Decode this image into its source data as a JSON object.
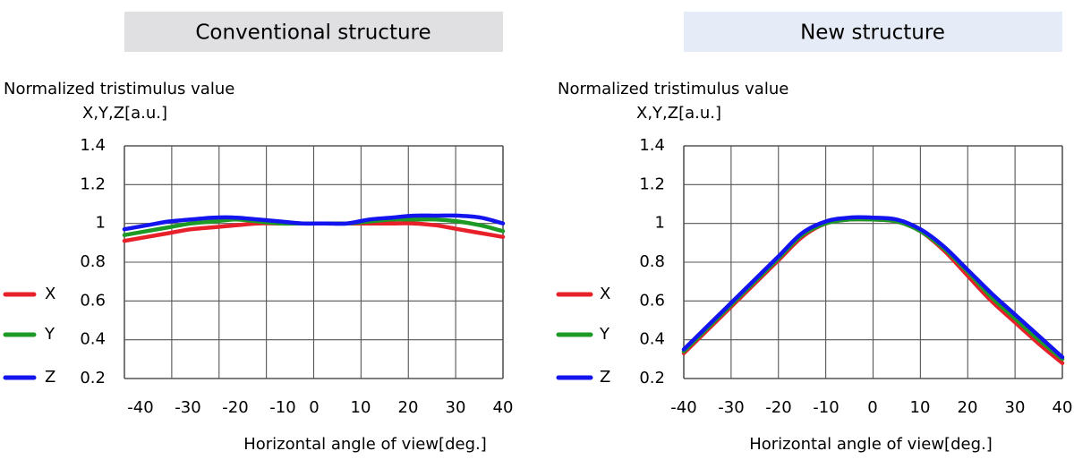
{
  "chart_data": [
    {
      "type": "line",
      "title": "Conventional structure",
      "title_bg": "#e0e0e2",
      "ylabel_line1": "Normalized tristimulus value",
      "ylabel_line2": "X,Y,Z[a.u.]",
      "xlabel": "Horizontal angle of view[deg.]",
      "xlim": [
        -45,
        40
      ],
      "ylim": [
        0.2,
        1.4
      ],
      "xticks": [
        "-40",
        "-30",
        "-20",
        "-10",
        "0",
        "10",
        "20",
        "30",
        "40"
      ],
      "yticks": [
        "1.4",
        "1.2",
        "1",
        "0.8",
        "0.6",
        "0.4",
        "0.2"
      ],
      "grid": true,
      "legend_position": "left",
      "series": [
        {
          "name": "X",
          "color": "#e8202a",
          "x": [
            -45,
            -40,
            -35,
            -30,
            -25,
            -20,
            -15,
            -10,
            -5,
            0,
            5,
            10,
            15,
            20,
            25,
            30,
            35,
            40
          ],
          "y": [
            0.91,
            0.93,
            0.95,
            0.97,
            0.98,
            0.99,
            1.0,
            1.0,
            1.0,
            1.0,
            1.0,
            1.0,
            1.0,
            1.0,
            0.99,
            0.97,
            0.95,
            0.93
          ]
        },
        {
          "name": "Y",
          "color": "#1d9a26",
          "x": [
            -45,
            -40,
            -35,
            -30,
            -25,
            -20,
            -15,
            -10,
            -5,
            0,
            5,
            10,
            15,
            20,
            25,
            30,
            35,
            40
          ],
          "y": [
            0.94,
            0.96,
            0.98,
            1.0,
            1.01,
            1.02,
            1.01,
            1.0,
            1.0,
            1.0,
            1.0,
            1.01,
            1.02,
            1.02,
            1.02,
            1.01,
            0.99,
            0.96
          ]
        },
        {
          "name": "Z",
          "color": "#1414ee",
          "x": [
            -45,
            -40,
            -35,
            -30,
            -25,
            -20,
            -15,
            -10,
            -5,
            0,
            5,
            10,
            15,
            20,
            25,
            30,
            35,
            40
          ],
          "y": [
            0.97,
            0.99,
            1.01,
            1.02,
            1.03,
            1.03,
            1.02,
            1.01,
            1.0,
            1.0,
            1.0,
            1.02,
            1.03,
            1.04,
            1.04,
            1.04,
            1.03,
            1.0
          ]
        }
      ]
    },
    {
      "type": "line",
      "title": "New structure",
      "title_bg": "#e6ecf7",
      "ylabel_line1": "Normalized tristimulus value",
      "ylabel_line2": "X,Y,Z[a.u.]",
      "xlabel": "Horizontal angle of view[deg.]",
      "xlim": [
        -40,
        40
      ],
      "ylim": [
        0.2,
        1.4
      ],
      "xticks": [
        "-40",
        "-30",
        "-20",
        "-10",
        "0",
        "10",
        "20",
        "30",
        "40"
      ],
      "yticks": [
        "1.4",
        "1.2",
        "1",
        "0.8",
        "0.6",
        "0.4",
        "0.2"
      ],
      "grid": true,
      "legend_position": "left",
      "series": [
        {
          "name": "X",
          "color": "#e8202a",
          "x": [
            -40,
            -35,
            -30,
            -25,
            -20,
            -15,
            -10,
            -5,
            0,
            5,
            10,
            15,
            20,
            25,
            30,
            35,
            40
          ],
          "y": [
            0.33,
            0.45,
            0.57,
            0.69,
            0.81,
            0.93,
            1.0,
            1.02,
            1.02,
            1.01,
            0.96,
            0.86,
            0.73,
            0.6,
            0.49,
            0.38,
            0.28
          ]
        },
        {
          "name": "Y",
          "color": "#1d9a26",
          "x": [
            -40,
            -35,
            -30,
            -25,
            -20,
            -15,
            -10,
            -5,
            0,
            5,
            10,
            15,
            20,
            25,
            30,
            35,
            40
          ],
          "y": [
            0.34,
            0.46,
            0.58,
            0.7,
            0.82,
            0.94,
            1.0,
            1.02,
            1.02,
            1.01,
            0.96,
            0.87,
            0.75,
            0.62,
            0.51,
            0.4,
            0.3
          ]
        },
        {
          "name": "Z",
          "color": "#1414ee",
          "x": [
            -40,
            -35,
            -30,
            -25,
            -20,
            -15,
            -10,
            -5,
            0,
            5,
            10,
            15,
            20,
            25,
            30,
            35,
            40
          ],
          "y": [
            0.35,
            0.47,
            0.59,
            0.71,
            0.83,
            0.95,
            1.01,
            1.03,
            1.03,
            1.02,
            0.97,
            0.88,
            0.76,
            0.64,
            0.53,
            0.42,
            0.31
          ]
        }
      ]
    }
  ]
}
